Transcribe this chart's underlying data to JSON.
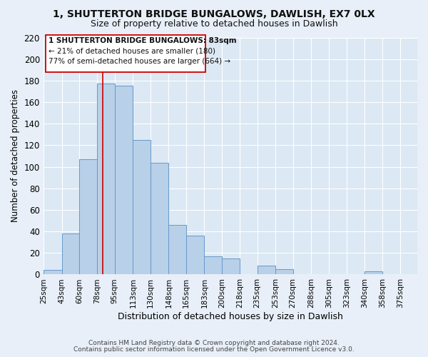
{
  "title": "1, SHUTTERTON BRIDGE BUNGALOWS, DAWLISH, EX7 0LX",
  "subtitle": "Size of property relative to detached houses in Dawlish",
  "xlabel": "Distribution of detached houses by size in Dawlish",
  "ylabel": "Number of detached properties",
  "bar_labels": [
    "25sqm",
    "43sqm",
    "60sqm",
    "78sqm",
    "95sqm",
    "113sqm",
    "130sqm",
    "148sqm",
    "165sqm",
    "183sqm",
    "200sqm",
    "218sqm",
    "235sqm",
    "253sqm",
    "270sqm",
    "288sqm",
    "305sqm",
    "323sqm",
    "340sqm",
    "358sqm",
    "375sqm"
  ],
  "bar_values": [
    4,
    38,
    107,
    177,
    175,
    125,
    104,
    46,
    36,
    17,
    15,
    0,
    8,
    5,
    0,
    0,
    0,
    0,
    3,
    0,
    0
  ],
  "bar_color": "#b8d0e8",
  "bar_edge_color": "#6699cc",
  "ylim": [
    0,
    220
  ],
  "yticks": [
    0,
    20,
    40,
    60,
    80,
    100,
    120,
    140,
    160,
    180,
    200,
    220
  ],
  "property_line_x": 83,
  "property_line_color": "#cc0000",
  "annotation_line1": "1 SHUTTERTON BRIDGE BUNGALOWS: 83sqm",
  "annotation_line2": "← 21% of detached houses are smaller (180)",
  "annotation_line3": "77% of semi-detached houses are larger (664) →",
  "footer1": "Contains HM Land Registry data © Crown copyright and database right 2024.",
  "footer2": "Contains public sector information licensed under the Open Government Licence v3.0.",
  "background_color": "#e8eff8",
  "plot_bg_color": "#dce8f4",
  "grid_color": "#ffffff",
  "annotation_box_color": "#ffffff",
  "annotation_box_edge": "#cc0000",
  "bin_edges": [
    25,
    43,
    60,
    78,
    95,
    113,
    130,
    148,
    165,
    183,
    200,
    218,
    235,
    253,
    270,
    288,
    305,
    323,
    340,
    358,
    375,
    392
  ]
}
